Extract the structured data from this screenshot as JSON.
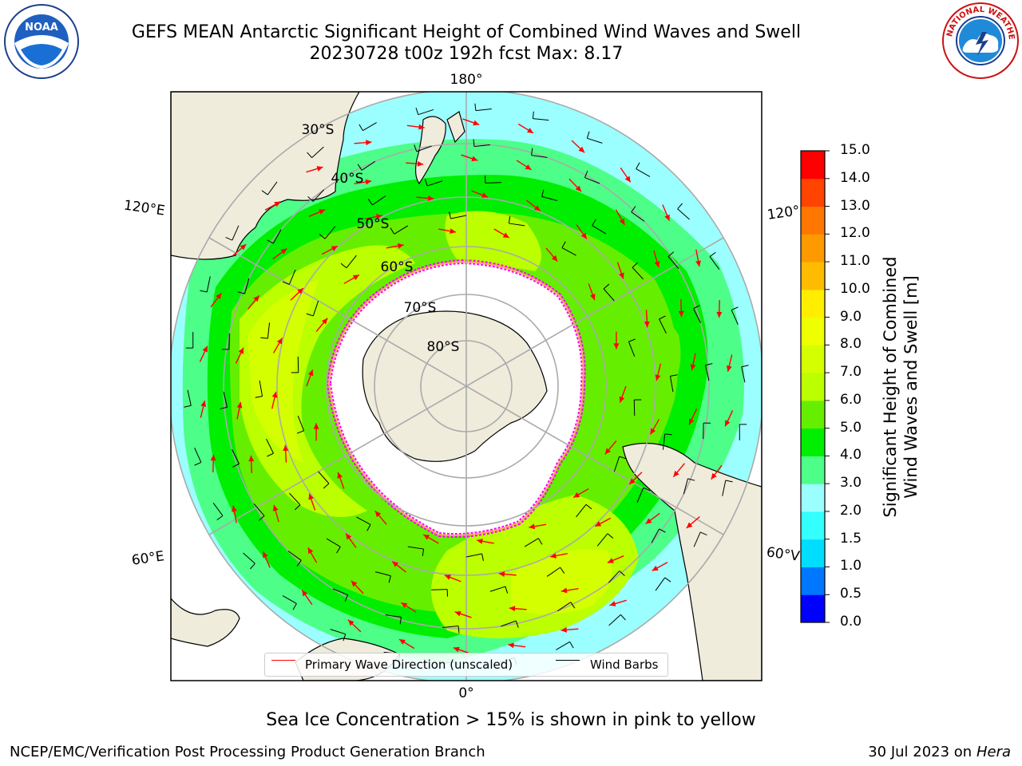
{
  "title": {
    "line1": "GEFS MEAN Antarctic Significant Height of Combined Wind Waves and Swell",
    "line2": "20230728 t00z 192h fcst   Max: 8.17"
  },
  "map": {
    "projection": "south polar stereographic",
    "longitude_labels": {
      "top": "180°",
      "upper_left": "120°E",
      "upper_right": "120°",
      "lower_left": "60°E",
      "lower_right": "60°V",
      "bottom": "0°"
    },
    "latitude_labels": [
      "30°S",
      "40°S",
      "50°S",
      "60°S",
      "70°S",
      "80°S"
    ],
    "field_max_m": 8.17,
    "colors": {
      "land": "#efecdc",
      "sea_ice_outline": "#ff00ff",
      "wave_arrow": "#ff0000",
      "wind_barb": "#000000"
    }
  },
  "legend": {
    "wave_label": "Primary Wave Direction (unscaled)",
    "wind_label": "Wind Barbs"
  },
  "colorbar": {
    "label_line1": "Significant Height of Combined",
    "label_line2": "Wind Waves and Swell [m]",
    "ticks": [
      "15.0",
      "14.0",
      "13.0",
      "12.0",
      "11.0",
      "10.0",
      "9.0",
      "8.0",
      "7.0",
      "6.0",
      "5.0",
      "4.0",
      "3.0",
      "2.0",
      "1.5",
      "1.0",
      "0.5",
      "0.0"
    ],
    "bands": [
      {
        "from": 0.0,
        "to": 0.5,
        "color": "#0000ff"
      },
      {
        "from": 0.5,
        "to": 1.0,
        "color": "#0077ff"
      },
      {
        "from": 1.0,
        "to": 1.5,
        "color": "#00ddff"
      },
      {
        "from": 1.5,
        "to": 2.0,
        "color": "#33ffff"
      },
      {
        "from": 2.0,
        "to": 3.0,
        "color": "#9cffff"
      },
      {
        "from": 3.0,
        "to": 4.0,
        "color": "#4dff88"
      },
      {
        "from": 4.0,
        "to": 5.0,
        "color": "#00ee00"
      },
      {
        "from": 5.0,
        "to": 6.0,
        "color": "#66ee00"
      },
      {
        "from": 6.0,
        "to": 7.0,
        "color": "#bbff00"
      },
      {
        "from": 7.0,
        "to": 8.0,
        "color": "#d4ff00"
      },
      {
        "from": 8.0,
        "to": 9.0,
        "color": "#eeff00"
      },
      {
        "from": 9.0,
        "to": 10.0,
        "color": "#ffee00"
      },
      {
        "from": 10.0,
        "to": 11.0,
        "color": "#ffbb00"
      },
      {
        "from": 11.0,
        "to": 12.0,
        "color": "#ff9900"
      },
      {
        "from": 12.0,
        "to": 13.0,
        "color": "#ff7700"
      },
      {
        "from": 13.0,
        "to": 14.0,
        "color": "#ff4400"
      },
      {
        "from": 14.0,
        "to": 15.0,
        "color": "#ff0000"
      }
    ]
  },
  "caption": "Sea Ice Concentration > 15% is shown in pink to yellow",
  "footer": {
    "left": "NCEP/EMC/Verification Post Processing Product Generation Branch",
    "right_date": "30 Jul 2023 on ",
    "right_host": "Hera"
  },
  "logos": {
    "left_icon": "noaa-logo",
    "right_icon": "nws-logo"
  }
}
